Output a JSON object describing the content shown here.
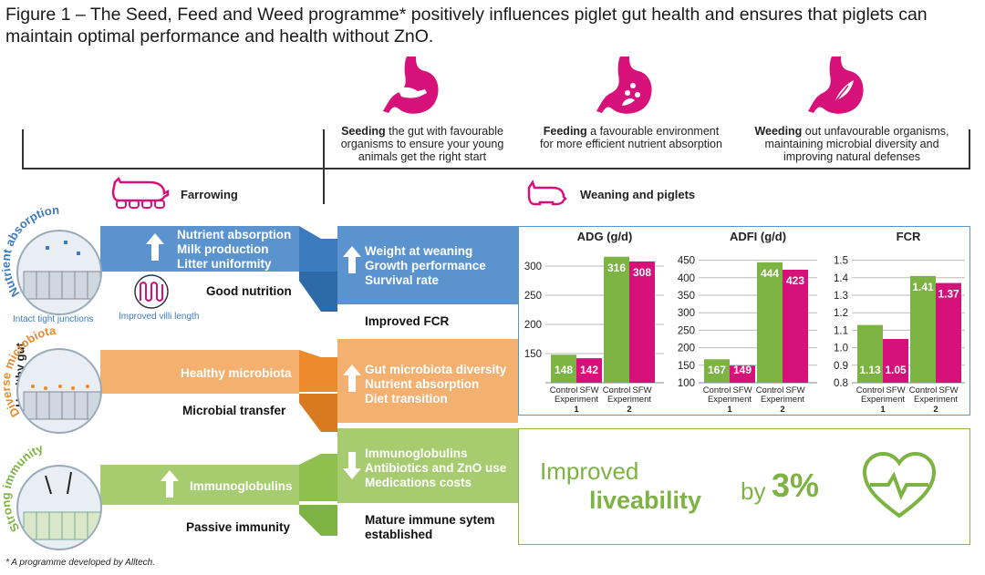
{
  "title": "Figure 1 – The Seed, Feed and Weed programme* positively influences piglet gut health and ensures that piglets can maintain optimal performance and health without ZnO.",
  "phases": [
    {
      "bold": "Seeding",
      "rest": " the gut with favourable organisms to ensure your young animals get the right start",
      "icon": "stomach-hand-icon"
    },
    {
      "bold": "Feeding",
      "rest": " a favourable environment for more efficient nutrient absorption",
      "icon": "stomach-drops-icon"
    },
    {
      "bold": "Weeding",
      "rest": " out unfavourable organisms, maintaining microbial diversity and improving natural defenses",
      "icon": "stomach-leaf-icon"
    }
  ],
  "sections": {
    "farrowing": "Farrowing",
    "weaning": "Weaning and piglets"
  },
  "side_label": "Healthy gut",
  "rows": {
    "nutrient": {
      "circle_label": "Nutrient absorption",
      "farrowing_items": [
        "Nutrient absorption",
        "Milk production",
        "Litter uniformity"
      ],
      "farrowing_sub": "Good nutrition",
      "weaning_items": [
        "Weight at weaning",
        "Growth performance",
        "Survival rate"
      ],
      "weaning_sub": "Improved FCR",
      "annotation_1": "Intact tight junctions",
      "annotation_2": "Improved villi length",
      "color": "#5b93cf"
    },
    "microbiota": {
      "circle_label": "Diverse microbiota",
      "farrowing_items": [
        "Healthy microbiota"
      ],
      "farrowing_sub": "Microbial transfer",
      "weaning_items": [
        "Gut microbiota diversity",
        "Nutrient absorption",
        "Diet transition"
      ],
      "color": "#f0a35c"
    },
    "immunity": {
      "circle_label": "Strong immunity",
      "farrowing_items": [
        "Immunoglobulins"
      ],
      "farrowing_sub": "Passive immunity",
      "weaning_items": [
        "Immunoglobulins",
        "Antibiotics and ZnO use",
        "Medications costs"
      ],
      "weaning_sub": "Mature immune sytem established",
      "color": "#9bc45e"
    }
  },
  "liveability": {
    "line1": "Improved",
    "line2": "liveability",
    "by": "by",
    "value": "3%"
  },
  "footnote": "* A programme developed by Alltech.",
  "colors": {
    "magenta": "#d6127a",
    "green": "#7cb342",
    "blue": "#3d7bbf",
    "orange": "#ec8a2c"
  },
  "chart_data": [
    {
      "type": "bar",
      "title": "ADG (g/d)",
      "categories": [
        "Control",
        "SFW",
        "Control",
        "SFW"
      ],
      "groups": [
        "1",
        "2"
      ],
      "ylim": [
        100,
        325
      ],
      "yticks": [
        150,
        200,
        250,
        300
      ],
      "series": [
        {
          "name": "Experiment",
          "values": [
            148,
            142,
            316,
            308
          ]
        }
      ],
      "xlabel": "Experiment"
    },
    {
      "type": "bar",
      "title": "ADFI (g/d)",
      "categories": [
        "Control",
        "SFW",
        "Control",
        "SFW"
      ],
      "groups": [
        "1",
        "2"
      ],
      "ylim": [
        100,
        475
      ],
      "yticks": [
        100,
        150,
        200,
        250,
        300,
        350,
        400,
        450
      ],
      "series": [
        {
          "name": "Experiment",
          "values": [
            167,
            149,
            444,
            423
          ]
        }
      ],
      "xlabel": "Experiment"
    },
    {
      "type": "bar",
      "title": "FCR",
      "categories": [
        "Control",
        "SFW",
        "Control",
        "SFW"
      ],
      "groups": [
        "1",
        "2"
      ],
      "ylim": [
        0.8,
        1.55
      ],
      "yticks": [
        0.8,
        0.9,
        1.0,
        1.1,
        1.2,
        1.3,
        1.4,
        1.5
      ],
      "series": [
        {
          "name": "Experiment",
          "values": [
            1.13,
            1.05,
            1.41,
            1.37
          ]
        }
      ],
      "xlabel": "Experiment"
    }
  ]
}
